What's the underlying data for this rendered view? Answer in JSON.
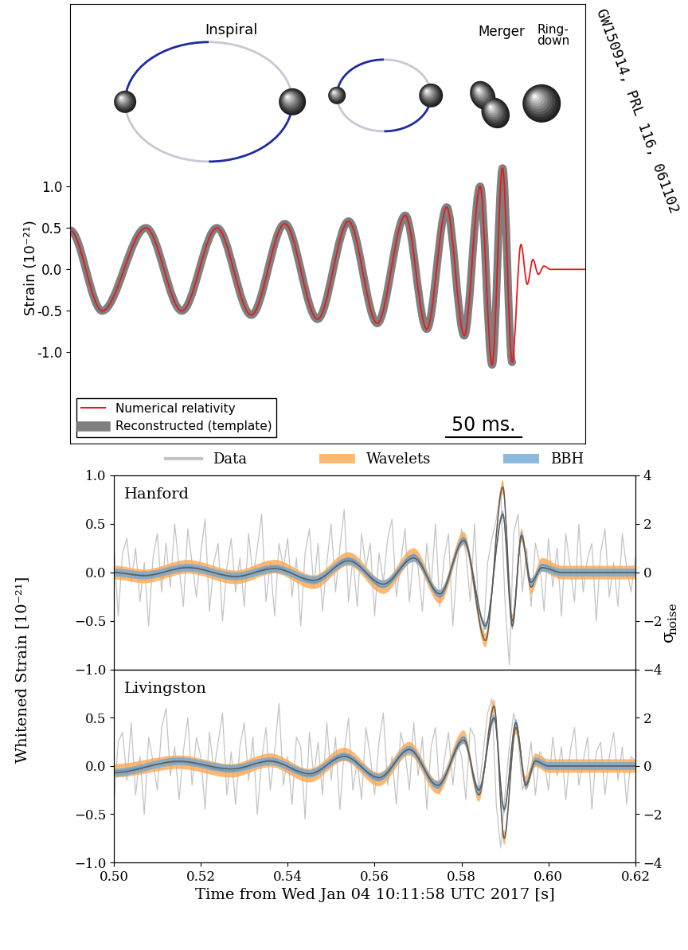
{
  "citation": "GW150914, PRL 116, 061102",
  "chart_data": [
    {
      "type": "line",
      "ylabel": "Strain (10⁻²¹)",
      "xlim": [
        0,
        340
      ],
      "ylim": [
        -2.1,
        3.2
      ],
      "yticks": [
        -1.0,
        -0.5,
        0.0,
        0.5,
        1.0
      ],
      "tick_labels": "y",
      "legend": "lower left",
      "annotations": [
        "Inspiral",
        "Merger",
        "Ring-\ndown"
      ],
      "scale_bar": {
        "label": "50 ms.",
        "length": 50
      },
      "series": [
        {
          "name": "Numerical relativity",
          "color": "#e41a1c",
          "type": "line",
          "x": [
            0.0,
            21.1,
            50.0,
            73.7,
            96.8,
            119.5,
            141.6,
            163.2,
            183.7,
            202.6,
            221.1,
            235.3,
            248.4,
            260.0,
            270.5,
            278.4,
            285.3,
            291.6,
            297.4,
            301.6,
            305.3,
            308.9,
            312.6,
            316.8,
            340.0
          ],
          "values": [
            0.47,
            -0.5,
            0.5,
            -0.5,
            0.5,
            -0.55,
            0.55,
            -0.6,
            0.58,
            -0.65,
            0.65,
            -0.72,
            0.75,
            -0.8,
            1.0,
            -1.15,
            1.22,
            -1.12,
            0.3,
            -0.18,
            0.12,
            -0.06,
            0.04,
            0.0,
            0.0
          ]
        },
        {
          "name": "Reconstructed (template)",
          "color": "#7f7f7f",
          "type": "line",
          "x": [
            0.0,
            21.1,
            50.0,
            73.7,
            96.8,
            119.5,
            141.6,
            163.2,
            183.7,
            202.6,
            221.1,
            235.3,
            248.4,
            260.0,
            270.5,
            278.4,
            285.3,
            291.6
          ],
          "values": [
            0.47,
            -0.5,
            0.5,
            -0.5,
            0.5,
            -0.55,
            0.55,
            -0.6,
            0.58,
            -0.65,
            0.65,
            -0.72,
            0.75,
            -0.8,
            1.0,
            -1.15,
            1.22,
            -1.12
          ]
        }
      ]
    },
    {
      "type": "line",
      "title": "Hanford",
      "ylabel": "Whitened Strain [10⁻²¹]",
      "y2label": {
        "symbol": "σ",
        "subscript": "noise"
      },
      "xlim": [
        0.5,
        0.62
      ],
      "xticks": [
        {
          "value": 0.5,
          "label": "0.50"
        },
        0.52,
        0.54,
        0.56,
        0.58,
        {
          "value": 0.6,
          "label": "0.60"
        },
        0.62
      ],
      "ylim": [
        -1.0,
        1.0
      ],
      "yticks": [
        {
          "value": -1.0,
          "label": "−1.0"
        },
        {
          "value": -0.5,
          "label": "−0.5"
        },
        0.0,
        0.5,
        1.0
      ],
      "y2lim": [
        -4,
        4
      ],
      "y2ticks": [
        {
          "value": -4,
          "label": "−4"
        },
        {
          "value": -2,
          "label": "−2"
        },
        0,
        2,
        4
      ],
      "tick_labels": "y",
      "legend": "lower center",
      "series": [
        {
          "name": "Data",
          "color": "#c4c4c4",
          "type": "line",
          "x": [
            0.5,
            0.501,
            0.502,
            0.503,
            0.504,
            0.505,
            0.506,
            0.507,
            0.508,
            0.509,
            0.51,
            0.511,
            0.512,
            0.513,
            0.514,
            0.515,
            0.516,
            0.517,
            0.518,
            0.519,
            0.52,
            0.521,
            0.522,
            0.523,
            0.524,
            0.525,
            0.526,
            0.527,
            0.528,
            0.529,
            0.53,
            0.531,
            0.532,
            0.533,
            0.534,
            0.535,
            0.536,
            0.537,
            0.538,
            0.539,
            0.54,
            0.541,
            0.542,
            0.543,
            0.544,
            0.545,
            0.546,
            0.547,
            0.548,
            0.549,
            0.55,
            0.551,
            0.552,
            0.553,
            0.554,
            0.555,
            0.556,
            0.557,
            0.558,
            0.559,
            0.56,
            0.561,
            0.562,
            0.563,
            0.564,
            0.565,
            0.566,
            0.567,
            0.568,
            0.569,
            0.57,
            0.571,
            0.572,
            0.573,
            0.574,
            0.575,
            0.576,
            0.577,
            0.578,
            0.579,
            0.58,
            0.581,
            0.582,
            0.583,
            0.584,
            0.585,
            0.586,
            0.587,
            0.588,
            0.589,
            0.59,
            0.591,
            0.592,
            0.593,
            0.594,
            0.595,
            0.596,
            0.597,
            0.598,
            0.599,
            0.6,
            0.601,
            0.602,
            0.603,
            0.604,
            0.605,
            0.606,
            0.607,
            0.608,
            0.609,
            0.61,
            0.611,
            0.612,
            0.613,
            0.614,
            0.615,
            0.616,
            0.617,
            0.618,
            0.619,
            0.62
          ],
          "values": [
            0.3,
            -0.45,
            0.2,
            0.35,
            -0.1,
            0.25,
            -0.3,
            0.1,
            -0.55,
            0.15,
            0.4,
            -0.2,
            0.3,
            -0.15,
            0.5,
            0.05,
            -0.35,
            0.45,
            0.1,
            -0.25,
            0.2,
            0.55,
            -0.4,
            0.1,
            0.3,
            -0.5,
            0.05,
            0.35,
            -0.2,
            0.15,
            -0.35,
            0.4,
            -0.05,
            0.25,
            0.6,
            -0.3,
            0.1,
            -0.45,
            0.3,
            0.05,
            0.35,
            -0.25,
            0.15,
            -0.55,
            0.2,
            0.45,
            -0.15,
            0.3,
            -0.4,
            0.1,
            0.5,
            -0.2,
            0.25,
            0.65,
            -0.3,
            0.15,
            -0.35,
            0.4,
            0.05,
            0.3,
            -0.45,
            0.2,
            -0.1,
            0.35,
            0.55,
            -0.25,
            0.1,
            0.45,
            -0.3,
            0.2,
            0.05,
            -0.4,
            0.3,
            -0.15,
            0.5,
            -0.35,
            0.15,
            0.4,
            -0.55,
            0.1,
            0.45,
            0.2,
            -0.3,
            0.5,
            -0.45,
            -0.7,
            0.1,
            0.35,
            0.55,
            0.85,
            -0.3,
            -0.95,
            0.4,
            0.6,
            -0.2,
            0.25,
            -0.35,
            0.3,
            0.1,
            -0.4,
            0.35,
            -0.15,
            0.25,
            -0.45,
            0.4,
            0.05,
            -0.3,
            0.5,
            -0.2,
            0.15,
            0.3,
            -0.5,
            0.2,
            0.45,
            -0.25,
            0.1,
            -0.35,
            0.4,
            0.05,
            -0.2,
            0.15
          ]
        },
        {
          "name": "Wavelets",
          "color": "#ffa64d",
          "type": "band",
          "band": 0.07,
          "x": [
            0.5,
            0.507,
            0.517,
            0.528,
            0.537,
            0.546,
            0.554,
            0.562,
            0.569,
            0.575,
            0.5805,
            0.5855,
            0.5895,
            0.5917,
            0.5938,
            0.596,
            0.5985,
            0.603,
            0.62
          ],
          "values": [
            0.0,
            -0.04,
            0.06,
            -0.05,
            0.06,
            -0.1,
            0.14,
            -0.15,
            0.18,
            -0.25,
            0.35,
            -0.7,
            0.88,
            -0.5,
            0.38,
            -0.15,
            0.08,
            0.0,
            0.0
          ]
        },
        {
          "name": "BBH",
          "color": "#6fa8d6",
          "type": "band",
          "band": 0.04,
          "x": [
            0.5,
            0.507,
            0.517,
            0.528,
            0.537,
            0.546,
            0.554,
            0.562,
            0.569,
            0.575,
            0.5805,
            0.5855,
            0.5895,
            0.5917,
            0.5938,
            0.596,
            0.5985,
            0.603,
            0.62
          ],
          "values": [
            0.0,
            -0.03,
            0.05,
            -0.04,
            0.04,
            -0.08,
            0.12,
            -0.12,
            0.15,
            -0.22,
            0.33,
            -0.55,
            0.6,
            -0.55,
            0.38,
            -0.1,
            0.05,
            0.0,
            0.0
          ]
        }
      ]
    },
    {
      "type": "line",
      "title": "Livingston",
      "xlabel": "Time from Wed Jan 04 10:11:58 UTC 2017 [s]",
      "xlim": [
        0.5,
        0.62
      ],
      "xticks": [
        {
          "value": 0.5,
          "label": "0.50"
        },
        0.52,
        0.54,
        0.56,
        0.58,
        {
          "value": 0.6,
          "label": "0.60"
        },
        0.62
      ],
      "ylim": [
        -1.0,
        1.0
      ],
      "yticks": [
        {
          "value": -1.0,
          "label": "−1.0"
        },
        {
          "value": -0.5,
          "label": "−0.5"
        },
        0.0,
        0.5
      ],
      "y2lim": [
        -4,
        4
      ],
      "y2ticks": [
        {
          "value": -4,
          "label": "−4"
        },
        {
          "value": -2,
          "label": "−2"
        },
        0,
        2
      ],
      "series": [
        {
          "name": "Data",
          "color": "#c4c4c4",
          "type": "line",
          "x": [
            0.5,
            0.501,
            0.502,
            0.503,
            0.504,
            0.505,
            0.506,
            0.507,
            0.508,
            0.509,
            0.51,
            0.511,
            0.512,
            0.513,
            0.514,
            0.515,
            0.516,
            0.517,
            0.518,
            0.519,
            0.52,
            0.521,
            0.522,
            0.523,
            0.524,
            0.525,
            0.526,
            0.527,
            0.528,
            0.529,
            0.53,
            0.531,
            0.532,
            0.533,
            0.534,
            0.535,
            0.536,
            0.537,
            0.538,
            0.539,
            0.54,
            0.541,
            0.542,
            0.543,
            0.544,
            0.545,
            0.546,
            0.547,
            0.548,
            0.549,
            0.55,
            0.551,
            0.552,
            0.553,
            0.554,
            0.555,
            0.556,
            0.557,
            0.558,
            0.559,
            0.56,
            0.561,
            0.562,
            0.563,
            0.564,
            0.565,
            0.566,
            0.567,
            0.568,
            0.569,
            0.57,
            0.571,
            0.572,
            0.573,
            0.574,
            0.575,
            0.576,
            0.577,
            0.578,
            0.579,
            0.58,
            0.581,
            0.582,
            0.583,
            0.584,
            0.585,
            0.586,
            0.587,
            0.588,
            0.589,
            0.59,
            0.591,
            0.592,
            0.593,
            0.594,
            0.595,
            0.596,
            0.597,
            0.598,
            0.599,
            0.6,
            0.601,
            0.602,
            0.603,
            0.604,
            0.605,
            0.606,
            0.607,
            0.608,
            0.609,
            0.61,
            0.611,
            0.612,
            0.613,
            0.614,
            0.615,
            0.616,
            0.617,
            0.618,
            0.619,
            0.62
          ],
          "values": [
            -0.4,
            0.25,
            0.35,
            -0.15,
            0.45,
            -0.3,
            0.1,
            -0.5,
            0.3,
            0.05,
            -0.25,
            0.4,
            0.6,
            -0.1,
            0.2,
            -0.35,
            0.15,
            0.5,
            -0.2,
            0.3,
            0.1,
            -0.45,
            0.35,
            -0.05,
            0.25,
            0.55,
            -0.3,
            0.15,
            -0.4,
            0.2,
            0.45,
            -0.15,
            0.3,
            -0.5,
            0.05,
            0.4,
            -0.25,
            0.15,
            0.65,
            -0.2,
            0.1,
            -0.4,
            0.3,
            0.2,
            -0.55,
            0.35,
            -0.1,
            0.25,
            -0.3,
            0.45,
            -0.15,
            0.3,
            -0.45,
            0.15,
            0.5,
            -0.25,
            0.05,
            -0.35,
            0.4,
            0.1,
            -0.3,
            0.25,
            0.55,
            -0.2,
            0.1,
            -0.4,
            0.35,
            0.15,
            -0.25,
            0.45,
            -0.1,
            0.3,
            -0.45,
            0.2,
            0.4,
            -0.3,
            0.05,
            0.35,
            -0.2,
            0.25,
            0.1,
            -0.35,
            0.4,
            0.3,
            -0.25,
            0.15,
            0.55,
            0.7,
            -0.4,
            -0.85,
            -0.3,
            0.2,
            0.55,
            0.3,
            -0.25,
            -0.1,
            0.25,
            -0.3,
            0.15,
            0.05,
            -0.25,
            0.3,
            -0.1,
            0.2,
            -0.35,
            0.15,
            0.4,
            -0.2,
            0.05,
            0.3,
            -0.45,
            0.15,
            0.25,
            -0.3,
            0.1,
            0.35,
            -0.15,
            0.2,
            -0.4,
            0.1,
            0.05
          ]
        },
        {
          "name": "Wavelets",
          "color": "#ffa64d",
          "type": "band",
          "band": 0.07,
          "x": [
            0.5,
            0.515,
            0.527,
            0.536,
            0.545,
            0.553,
            0.561,
            0.568,
            0.5745,
            0.5805,
            0.584,
            0.5875,
            0.5898,
            0.5925,
            0.5948,
            0.597,
            0.6,
            0.62
          ],
          "values": [
            -0.05,
            0.04,
            -0.05,
            0.06,
            -0.1,
            0.12,
            -0.14,
            0.18,
            -0.22,
            0.3,
            -0.3,
            0.62,
            -0.75,
            0.4,
            -0.18,
            0.06,
            0.0,
            0.0
          ]
        },
        {
          "name": "BBH",
          "color": "#6fa8d6",
          "type": "band",
          "band": 0.04,
          "x": [
            0.5,
            0.515,
            0.527,
            0.536,
            0.545,
            0.553,
            0.561,
            0.568,
            0.5745,
            0.5805,
            0.584,
            0.5875,
            0.5898,
            0.5925,
            0.5948,
            0.597,
            0.6,
            0.62
          ],
          "values": [
            -0.07,
            0.05,
            -0.03,
            0.05,
            -0.08,
            0.1,
            -0.12,
            0.17,
            -0.2,
            0.27,
            -0.25,
            0.5,
            -0.45,
            0.45,
            -0.2,
            0.05,
            0.0,
            0.0
          ]
        }
      ]
    }
  ]
}
